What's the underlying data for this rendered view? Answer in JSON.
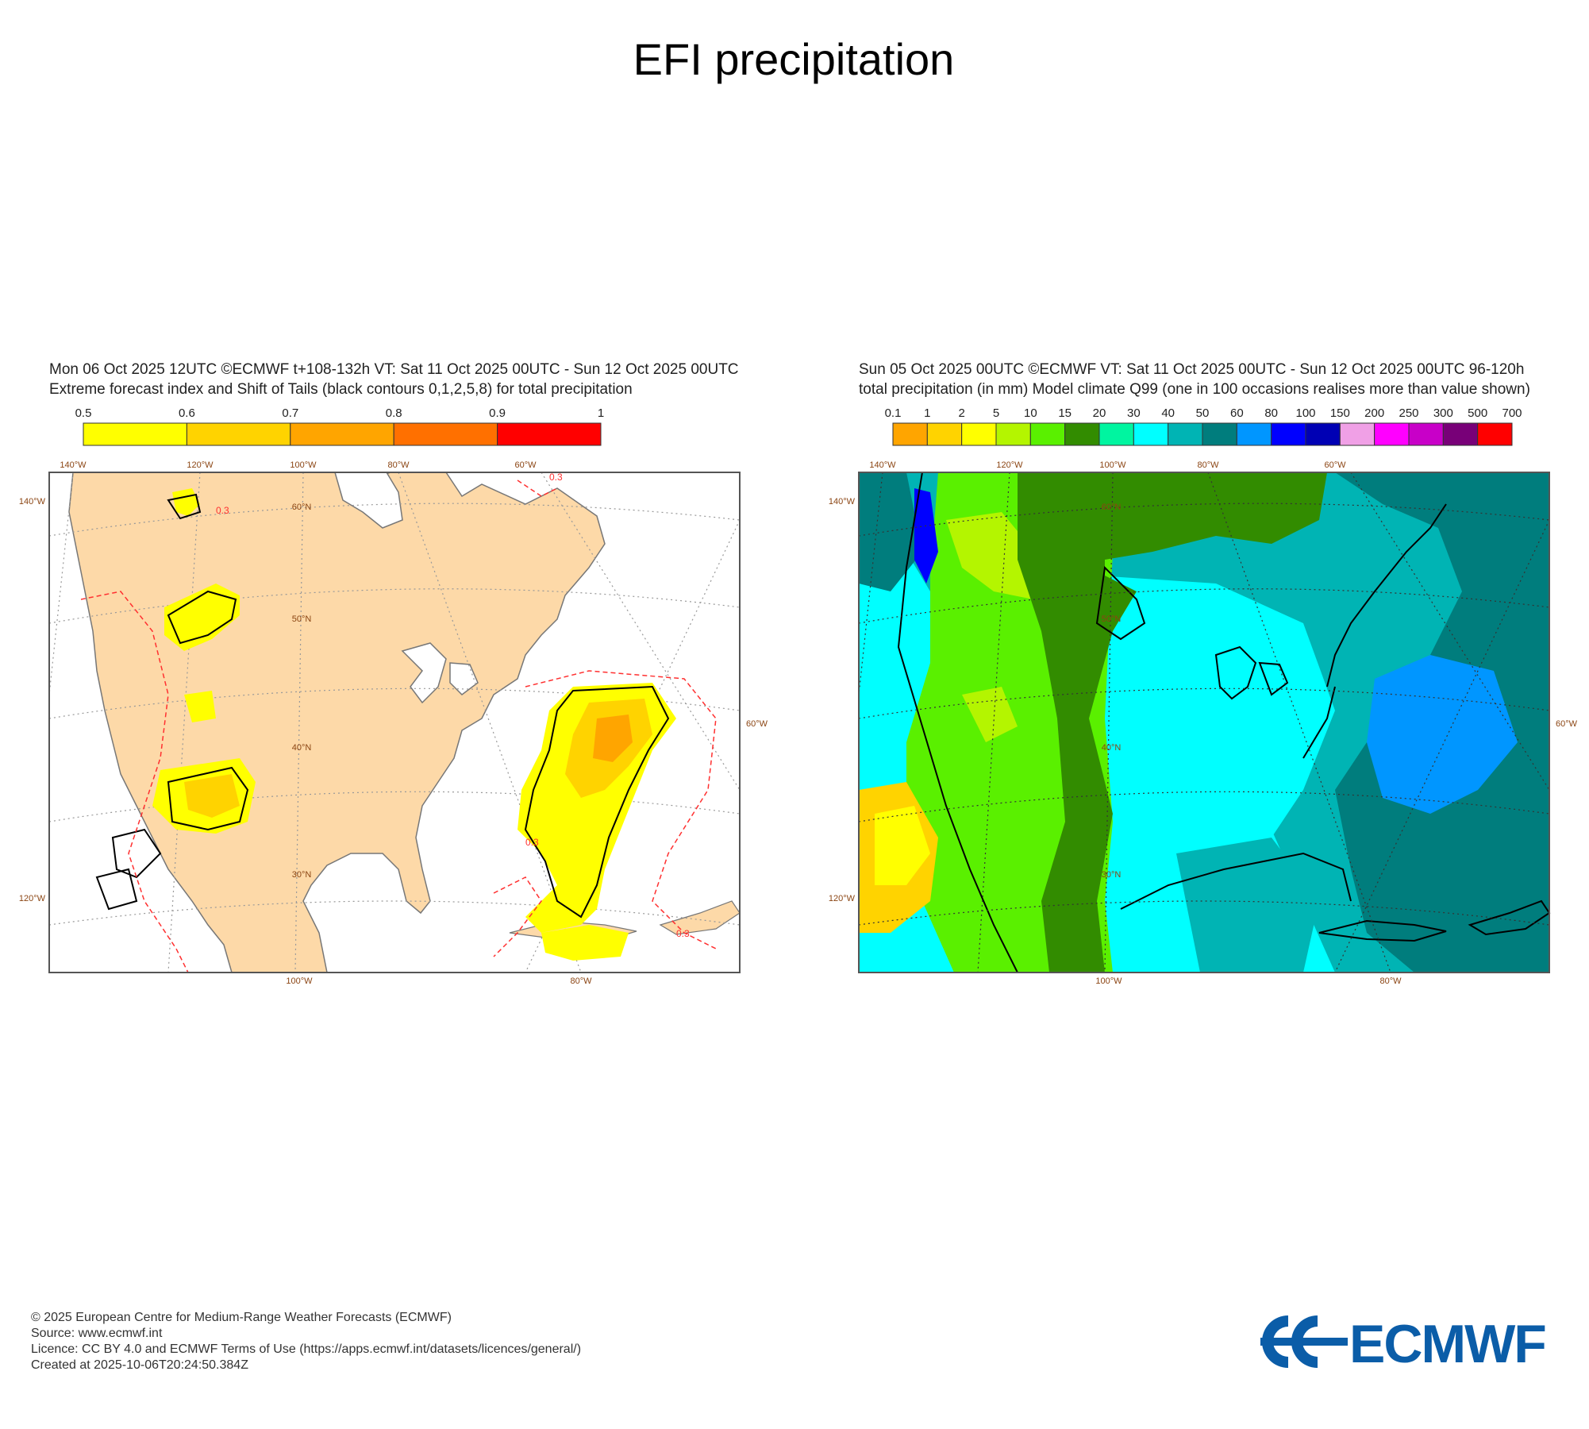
{
  "title": "EFI precipitation",
  "left_panel": {
    "header_line1": "Mon 06 Oct 2025 12UTC ©ECMWF t+108-132h  VT: Sat 11 Oct 2025 00UTC - Sun 12 Oct 2025 00UTC",
    "header_line2": "Extreme forecast index and Shift of Tails (black contours 0,1,2,5,8) for total precipitation",
    "colorbar": {
      "ticks": [
        "0.5",
        "0.6",
        "0.7",
        "0.8",
        "0.9",
        "1"
      ],
      "colors": [
        "#ffff00",
        "#ffd300",
        "#ffa500",
        "#ff7000",
        "#ff0000"
      ]
    },
    "lon_labels_top": [
      "140°W",
      "120°W",
      "100°W",
      "80°W",
      "60°W"
    ],
    "lon_labels_bottom": [
      "100°W",
      "80°W"
    ],
    "lat_labels_left": [
      "140°W",
      "120°W"
    ],
    "lat_labels_right": [
      "60°W"
    ],
    "lat_labels_inner": [
      "60°N",
      "50°N",
      "40°N",
      "30°N"
    ],
    "contour_labels": [
      "0.3",
      "0.3",
      "0.3",
      "0.3"
    ]
  },
  "right_panel": {
    "header_line1": "Sun 05 Oct 2025 00UTC ©ECMWF VT: Sat 11 Oct 2025 00UTC - Sun 12 Oct 2025 00UTC   96-120h",
    "header_line2": "total precipitation (in mm)  Model climate Q99 (one in 100 occasions realises more than value shown)",
    "colorbar": {
      "ticks": [
        "0.1",
        "1",
        "2",
        "5",
        "10",
        "15",
        "20",
        "30",
        "40",
        "50",
        "60",
        "80",
        "100",
        "150",
        "200",
        "250",
        "300",
        "500",
        "700"
      ],
      "colors": [
        "#ffa500",
        "#ffd300",
        "#ffff00",
        "#b4f500",
        "#5af000",
        "#328c00",
        "#00f5a0",
        "#00ffff",
        "#00b4b4",
        "#007d7d",
        "#0096ff",
        "#0000ff",
        "#0000b4",
        "#f0a0e6",
        "#ff00ff",
        "#c800c8",
        "#780078",
        "#ff0000"
      ]
    },
    "lon_labels_top": [
      "140°W",
      "120°W",
      "100°W",
      "80°W",
      "60°W"
    ],
    "lon_labels_bottom": [
      "100°W",
      "80°W"
    ],
    "lat_labels_left": [
      "140°W",
      "120°W"
    ],
    "lat_labels_right": [
      "60°W"
    ],
    "lat_labels_inner": [
      "60°N",
      "50°N",
      "40°N",
      "30°N"
    ]
  },
  "footer": {
    "line1": "© 2025 European Centre for Medium-Range Weather Forecasts (ECMWF)",
    "line2": "Source: www.ecmwf.int",
    "line3": "Licence: CC BY 4.0 and ECMWF Terms of Use (https://apps.ecmwf.int/datasets/licences/general/)",
    "line4": "Created at 2025-10-06T20:24:50.384Z"
  },
  "logo_text": "ECMWF"
}
